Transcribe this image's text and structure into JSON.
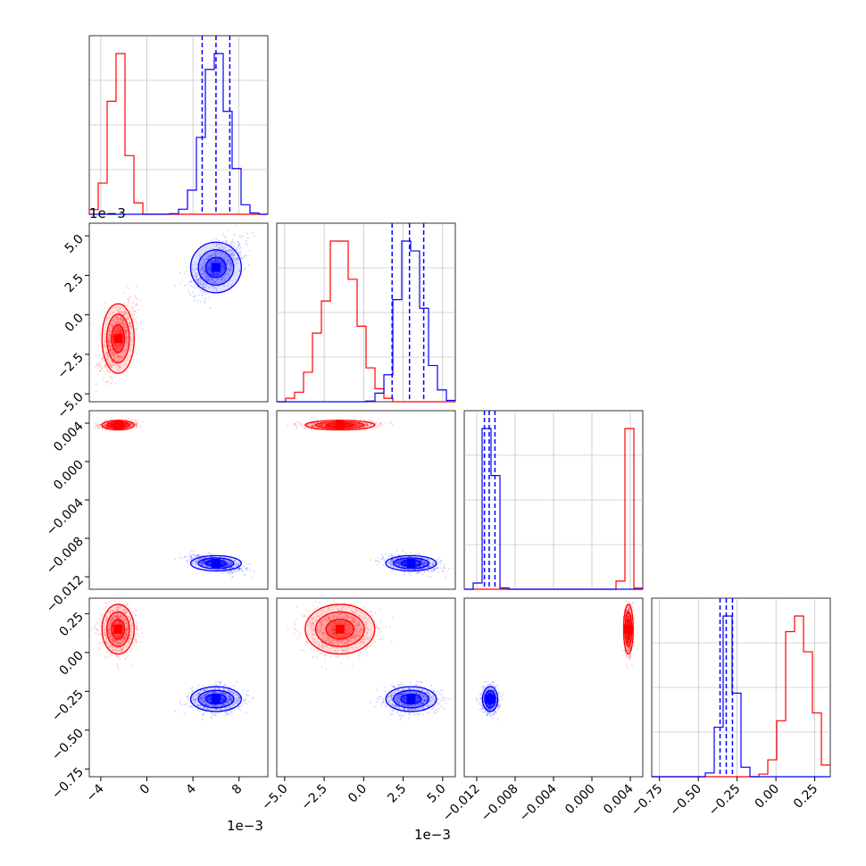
{
  "figure": {
    "type": "corner-plot",
    "colors": {
      "red_series": "#ff0000",
      "blue_series": "#0000ff",
      "grid": "#b0b0b0"
    }
  },
  "chart_data": {
    "type": "corner",
    "series": [
      {
        "color": "#ff0000",
        "means": [
          -0.0025,
          -0.0015,
          0.0038,
          0.15
        ],
        "sds": [
          0.0007,
          0.0011,
          0.00025,
          0.08
        ]
      },
      {
        "color": "#0000ff",
        "means": [
          0.006,
          0.003,
          -0.0106,
          -0.3
        ],
        "sds": [
          0.0011,
          0.0008,
          0.0004,
          0.04
        ]
      }
    ],
    "truth_lines_blue": [
      [
        0.0048,
        0.006,
        0.0072
      ],
      [
        0.0018,
        0.0029,
        0.0038
      ],
      [
        -0.0112,
        -0.0107,
        -0.0101
      ],
      [
        -0.36,
        -0.32,
        -0.28
      ]
    ],
    "ranges": [
      [
        -0.005,
        0.0105
      ],
      [
        -0.0055,
        0.0058
      ],
      [
        -0.0133,
        0.0053
      ],
      [
        -0.8,
        0.35
      ]
    ],
    "axes": [
      {
        "ticks": [
          -0.004,
          0,
          0.004,
          0.008
        ],
        "labels": [
          "−4",
          "0",
          "4",
          "8"
        ],
        "offset": "1e−3"
      },
      {
        "ticks": [
          -0.005,
          -0.0025,
          0,
          0.0025,
          0.005
        ],
        "labels": [
          "−5.0",
          "−2.5",
          "0.0",
          "2.5",
          "5.0"
        ],
        "offset": "1e−3"
      },
      {
        "ticks": [
          -0.012,
          -0.008,
          -0.004,
          0,
          0.004
        ],
        "labels": [
          "−0.012",
          "−0.008",
          "−0.004",
          "0.000",
          "0.004"
        ]
      },
      {
        "ticks": [
          -0.75,
          -0.5,
          -0.25,
          0,
          0.25
        ],
        "labels": [
          "−0.75",
          "−0.50",
          "−0.25",
          "0.00",
          "0.25"
        ]
      }
    ],
    "offset_labels": {
      "top_y": "1e−3",
      "bottom_x1": "1e−3",
      "bottom_x2": "1e−3"
    }
  }
}
